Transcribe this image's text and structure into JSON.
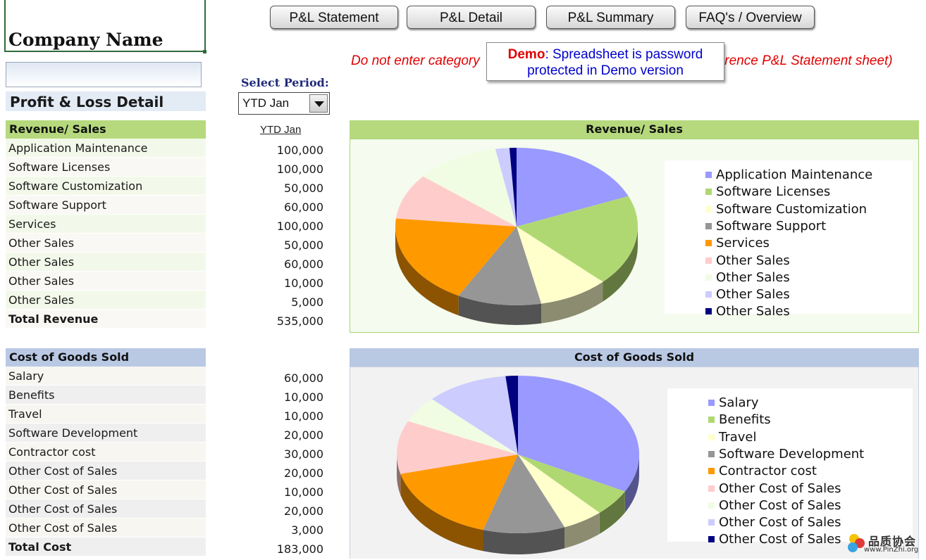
{
  "header": {
    "company_name": "Company Name",
    "title": "Profit & Loss Detail",
    "buttons": [
      "P&L Statement",
      "P&L Detail",
      "P&L Summary",
      "FAQ's / Overview"
    ],
    "warning_left": "Do not enter category",
    "warning_right": "erence P&L Statement sheet)",
    "demo_word": "Demo",
    "demo_line1_rest": ": Spreadsheet is password",
    "demo_line2": "protected in Demo version"
  },
  "period": {
    "label": "Select Period:",
    "selected": "YTD Jan",
    "column_header": "YTD Jan"
  },
  "revenue": {
    "header": "Revenue/ Sales",
    "rows": [
      {
        "label": "Application Maintenance",
        "value": "100,000"
      },
      {
        "label": "Software Licenses",
        "value": "100,000"
      },
      {
        "label": "Software Customization",
        "value": "50,000"
      },
      {
        "label": "Software Support",
        "value": "60,000"
      },
      {
        "label": "Services",
        "value": "100,000"
      },
      {
        "label": "Other Sales",
        "value": "50,000"
      },
      {
        "label": "Other Sales",
        "value": "60,000"
      },
      {
        "label": "Other Sales",
        "value": "10,000"
      },
      {
        "label": "Other Sales",
        "value": "5,000"
      }
    ],
    "total_label": "Total Revenue",
    "total_value": "535,000"
  },
  "cogs": {
    "header": "Cost of Goods Sold",
    "rows": [
      {
        "label": "Salary",
        "value": "60,000"
      },
      {
        "label": "Benefits",
        "value": "10,000"
      },
      {
        "label": "Travel",
        "value": "10,000"
      },
      {
        "label": "Software Development",
        "value": "20,000"
      },
      {
        "label": "Contractor cost",
        "value": "30,000"
      },
      {
        "label": "Other Cost of Sales",
        "value": "20,000"
      },
      {
        "label": "Other Cost of Sales",
        "value": "10,000"
      },
      {
        "label": "Other Cost of Sales",
        "value": "20,000"
      },
      {
        "label": "Other Cost of Sales",
        "value": "3,000"
      }
    ],
    "total_label": "Total Cost",
    "total_value": "183,000"
  },
  "colors": [
    "#9999ff",
    "#b0d872",
    "#ffffcc",
    "#969696",
    "#ff9900",
    "#ffcccc",
    "#f1fde3",
    "#ccccff",
    "#000080"
  ],
  "watermark": {
    "text": "品质协会",
    "url": "www.PinZhi.org"
  },
  "chart_data": [
    {
      "type": "pie",
      "title": "Revenue/ Sales",
      "categories": [
        "Application Maintenance",
        "Software Licenses",
        "Software Customization",
        "Software Support",
        "Services",
        "Other Sales",
        "Other Sales",
        "Other Sales",
        "Other Sales"
      ],
      "values": [
        100000,
        100000,
        50000,
        60000,
        100000,
        50000,
        60000,
        10000,
        5000
      ],
      "legend": "right"
    },
    {
      "type": "pie",
      "title": "Cost of Goods Sold",
      "categories": [
        "Salary",
        "Benefits",
        "Travel",
        "Software Development",
        "Contractor cost",
        "Other Cost of Sales",
        "Other Cost of Sales",
        "Other Cost of Sales",
        "Other Cost of Sales"
      ],
      "values": [
        60000,
        10000,
        10000,
        20000,
        30000,
        20000,
        10000,
        20000,
        3000
      ],
      "legend": "right"
    }
  ]
}
